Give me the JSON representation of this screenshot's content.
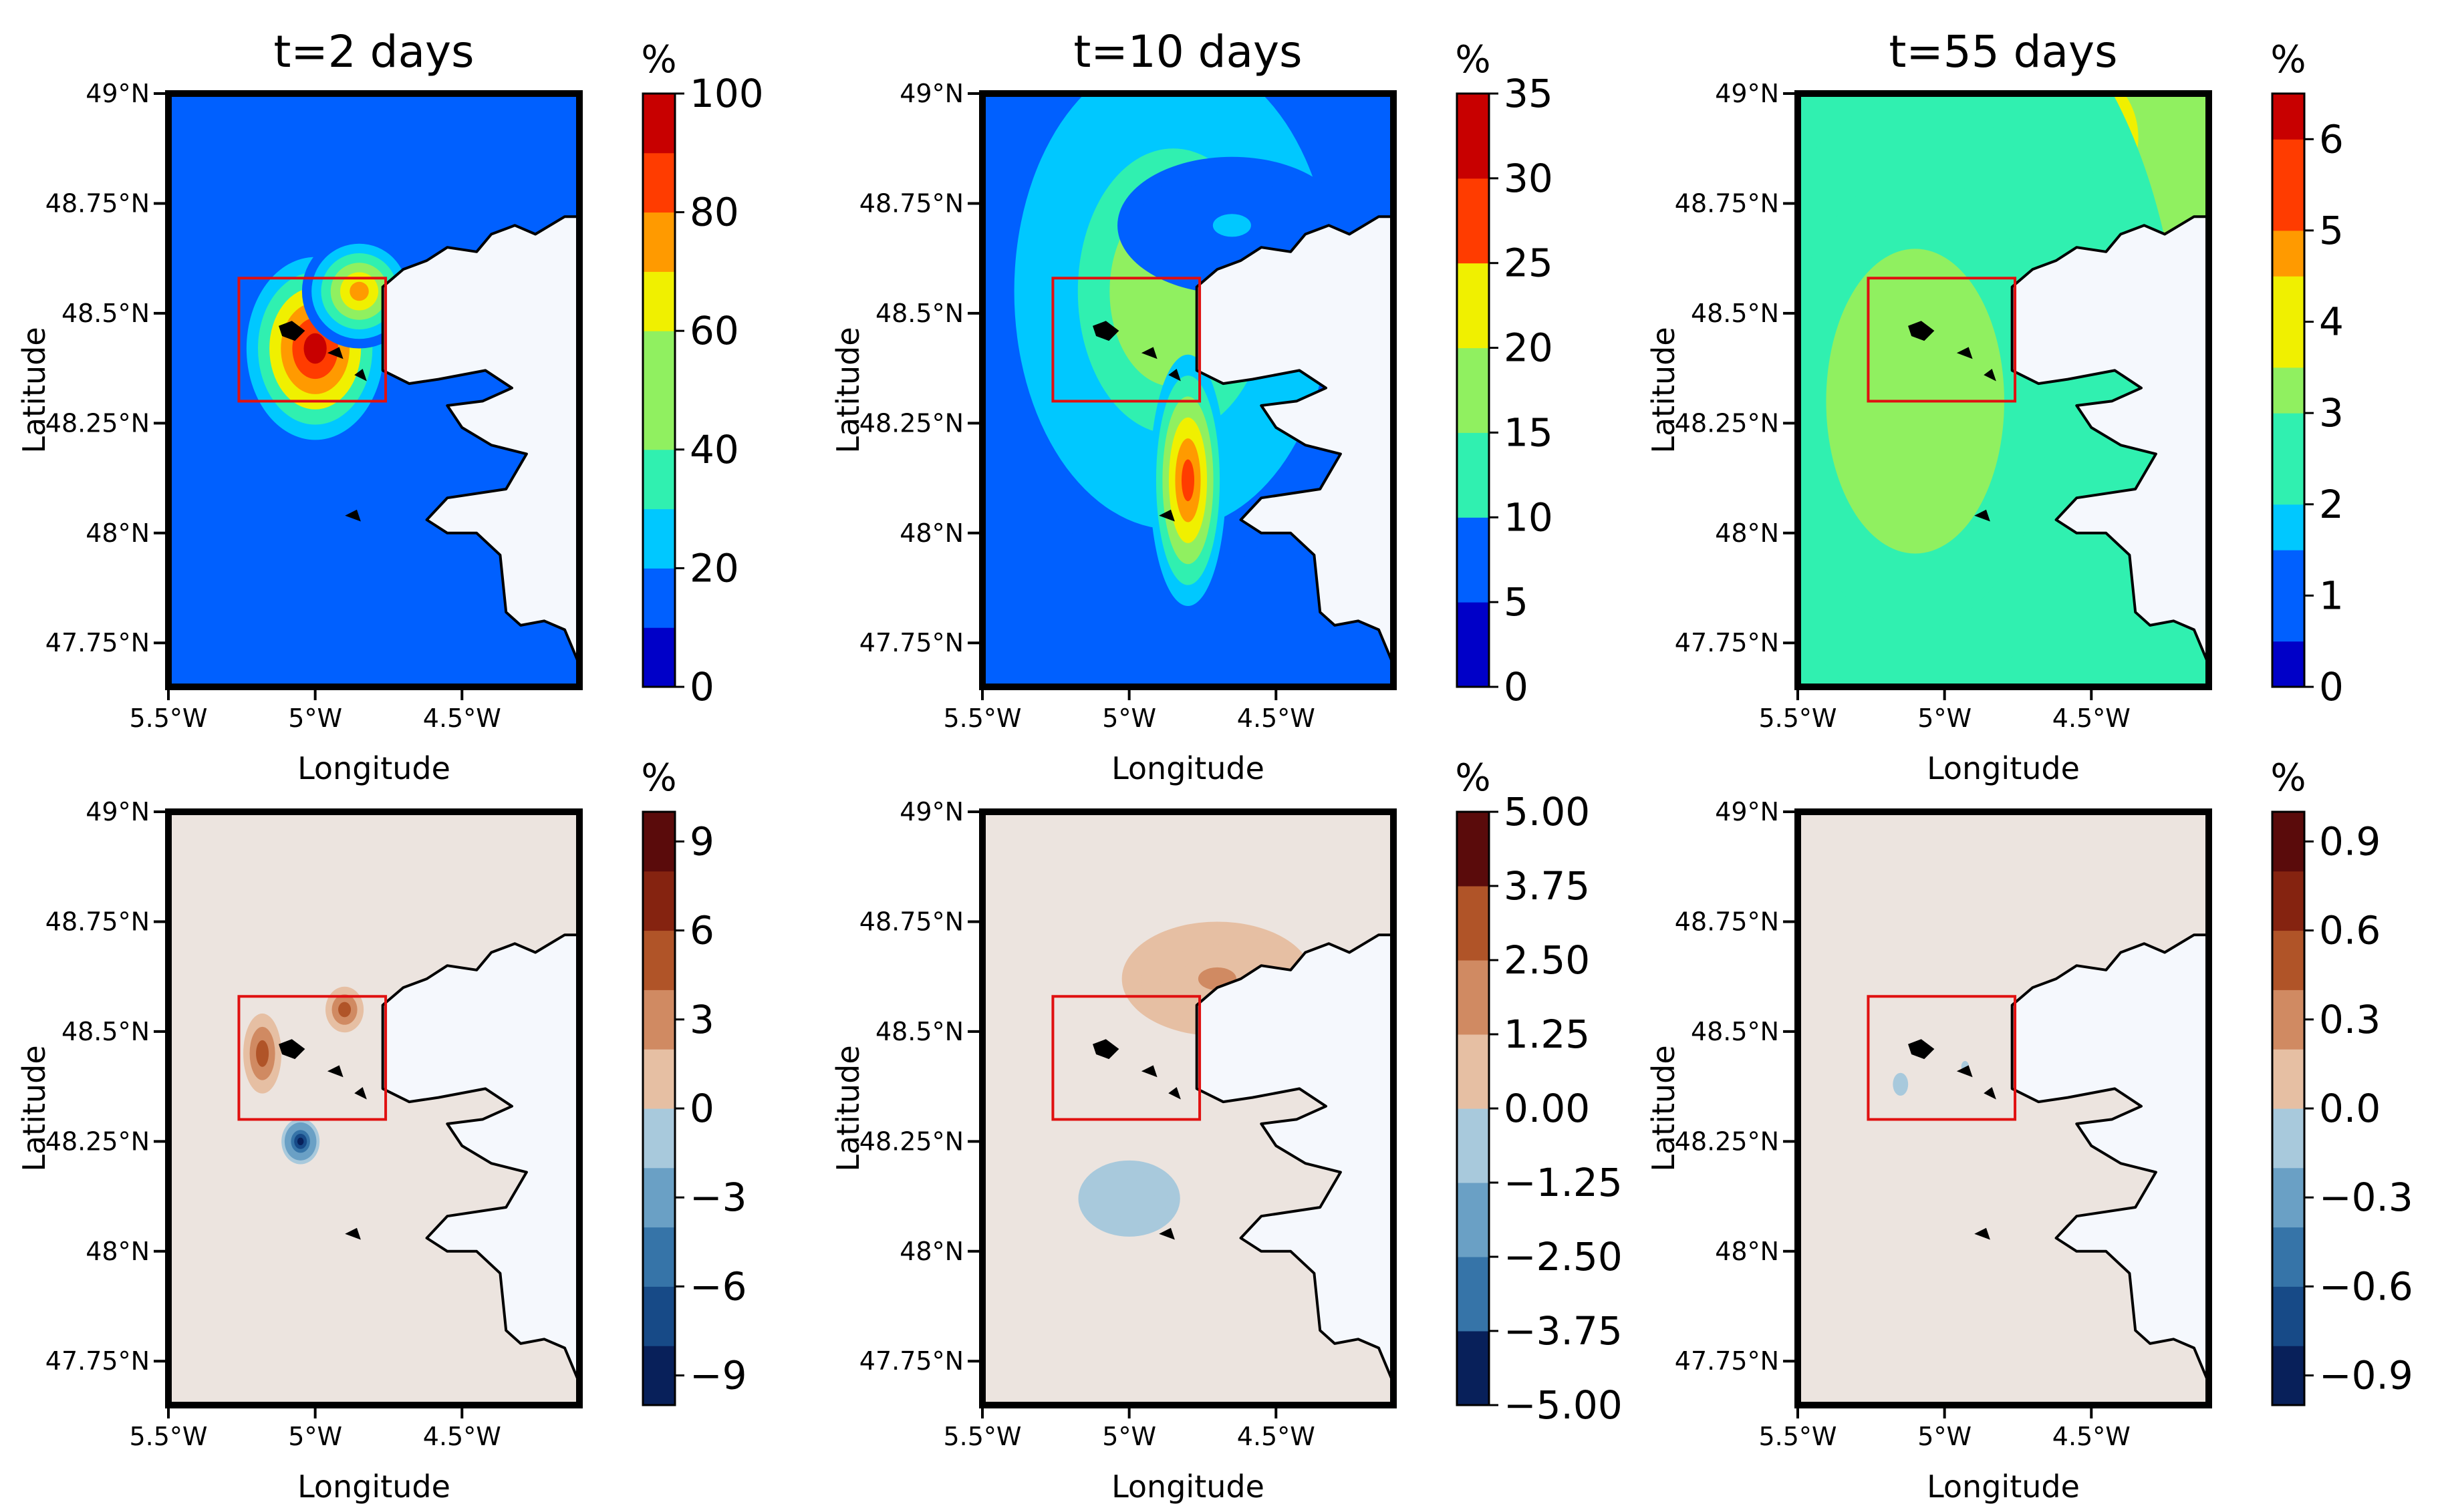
{
  "chart_data": {
    "type": "heatmap",
    "subplots": [
      {
        "id": "p1",
        "title": "t=2 days",
        "row": 0,
        "col": 0,
        "xlabel": "Longitude",
        "ylabel": "Latitude",
        "x_ticks": [
          "5.5°W",
          "5°W",
          "4.5°W"
        ],
        "y_ticks": [
          "49°N",
          "48.75°N",
          "48.5°N",
          "48.25°N",
          "48°N",
          "47.75°N"
        ],
        "xlim": [
          -5.5,
          -4.1
        ],
        "ylim": [
          47.65,
          49.0
        ],
        "box": {
          "lon": [
            -5.26,
            -4.76
          ],
          "lat": [
            48.3,
            48.58
          ]
        },
        "colorbar": {
          "label": "%",
          "ticks": [
            "100",
            "80",
            "60",
            "40",
            "20",
            "0"
          ],
          "range": [
            0,
            100
          ],
          "levels": 10,
          "cmap": "jet"
        },
        "field": [
          {
            "lon": -5.0,
            "lat": 48.42,
            "value": 100,
            "sx": 0.18,
            "sy": 0.16
          },
          {
            "lon": -4.85,
            "lat": 48.55,
            "value": 70,
            "sx": 0.15,
            "sy": 0.1
          }
        ]
      },
      {
        "id": "p2",
        "title": "t=10 days",
        "row": 0,
        "col": 1,
        "xlabel": "Longitude",
        "ylabel": "Latitude",
        "x_ticks": [
          "5.5°W",
          "5°W",
          "4.5°W"
        ],
        "y_ticks": [
          "49°N",
          "48.75°N",
          "48.5°N",
          "48.25°N",
          "48°N",
          "47.75°N"
        ],
        "xlim": [
          -5.5,
          -4.1
        ],
        "ylim": [
          47.65,
          49.0
        ],
        "box": {
          "lon": [
            -5.26,
            -4.76
          ],
          "lat": [
            48.3,
            48.58
          ]
        },
        "colorbar": {
          "label": "%",
          "ticks": [
            "35",
            "30",
            "25",
            "20",
            "15",
            "10",
            "5",
            "0"
          ],
          "range": [
            0,
            35
          ],
          "levels": 7,
          "cmap": "jet"
        },
        "field": [
          {
            "lon": -4.85,
            "lat": 48.55,
            "value": 18,
            "sx": 0.5,
            "sy": 0.5
          },
          {
            "lon": -4.8,
            "lat": 48.12,
            "value": 28,
            "sx": 0.1,
            "sy": 0.22
          },
          {
            "lon": -4.65,
            "lat": 48.7,
            "value": 8,
            "sx": 0.3,
            "sy": 0.12
          }
        ]
      },
      {
        "id": "p3",
        "title": "t=55 days",
        "row": 0,
        "col": 2,
        "xlabel": "Longitude",
        "ylabel": "Latitude",
        "x_ticks": [
          "5.5°W",
          "5°W",
          "4.5°W"
        ],
        "y_ticks": [
          "49°N",
          "48.75°N",
          "48.5°N",
          "48.25°N",
          "48°N",
          "47.75°N"
        ],
        "xlim": [
          -5.5,
          -4.1
        ],
        "ylim": [
          47.65,
          49.0
        ],
        "box": {
          "lon": [
            -5.26,
            -4.76
          ],
          "lat": [
            48.3,
            48.58
          ]
        },
        "colorbar": {
          "label": "%",
          "ticks": [
            "6",
            "5",
            "4",
            "3",
            "2",
            "1",
            "0"
          ],
          "range": [
            0,
            6.5
          ],
          "levels": 13,
          "cmap": "jet"
        },
        "field": [
          {
            "lon": -4.6,
            "lat": 48.9,
            "value": 3.9,
            "sx": 0.6,
            "sy": 0.4
          },
          {
            "lon": -5.1,
            "lat": 48.3,
            "value": 3.0,
            "sx": 0.7,
            "sy": 0.8
          }
        ]
      },
      {
        "id": "p4",
        "title": "",
        "row": 1,
        "col": 0,
        "xlabel": "Longitude",
        "ylabel": "Latitude",
        "x_ticks": [
          "5.5°W",
          "5°W",
          "4.5°W"
        ],
        "y_ticks": [
          "49°N",
          "48.75°N",
          "48.5°N",
          "48.25°N",
          "48°N",
          "47.75°N"
        ],
        "xlim": [
          -5.5,
          -4.1
        ],
        "ylim": [
          47.65,
          49.0
        ],
        "box": {
          "lon": [
            -5.26,
            -4.76
          ],
          "lat": [
            48.3,
            48.58
          ]
        },
        "colorbar": {
          "label": "%",
          "ticks": [
            "9",
            "6",
            "3",
            "0",
            "−3",
            "−6",
            "−9"
          ],
          "range": [
            -10,
            10
          ],
          "levels": 10,
          "cmap": "RdBu"
        },
        "field": [
          {
            "lon": -5.05,
            "lat": 48.25,
            "value": -9,
            "sx": 0.05,
            "sy": 0.04
          },
          {
            "lon": -5.18,
            "lat": 48.45,
            "value": 6,
            "sx": 0.05,
            "sy": 0.07
          },
          {
            "lon": -4.9,
            "lat": 48.55,
            "value": 6,
            "sx": 0.05,
            "sy": 0.04
          }
        ]
      },
      {
        "id": "p5",
        "title": "",
        "row": 1,
        "col": 1,
        "xlabel": "Longitude",
        "ylabel": "Latitude",
        "x_ticks": [
          "5.5°W",
          "5°W",
          "4.5°W"
        ],
        "y_ticks": [
          "49°N",
          "48.75°N",
          "48.5°N",
          "48.25°N",
          "48°N",
          "47.75°N"
        ],
        "xlim": [
          -5.5,
          -4.1
        ],
        "ylim": [
          47.65,
          49.0
        ],
        "box": {
          "lon": [
            -5.26,
            -4.76
          ],
          "lat": [
            48.3,
            48.58
          ]
        },
        "colorbar": {
          "label": "%",
          "ticks": [
            "5.00",
            "3.75",
            "2.50",
            "1.25",
            "0.00",
            "−1.25",
            "−2.50",
            "−3.75",
            "−5.00"
          ],
          "range": [
            -5,
            5
          ],
          "levels": 8,
          "cmap": "RdBu"
        },
        "field": [
          {
            "lon": -4.7,
            "lat": 48.62,
            "value": 1.4,
            "sx": 0.3,
            "sy": 0.12
          },
          {
            "lon": -5.0,
            "lat": 48.12,
            "value": -1.2,
            "sx": 0.2,
            "sy": 0.1
          }
        ]
      },
      {
        "id": "p6",
        "title": "",
        "row": 1,
        "col": 2,
        "xlabel": "Longitude",
        "ylabel": "Latitude",
        "x_ticks": [
          "5.5°W",
          "5°W",
          "4.5°W"
        ],
        "y_ticks": [
          "49°N",
          "48.75°N",
          "48.5°N",
          "48.25°N",
          "48°N",
          "47.75°N"
        ],
        "xlim": [
          -5.5,
          -4.1
        ],
        "ylim": [
          47.65,
          49.0
        ],
        "box": {
          "lon": [
            -5.26,
            -4.76
          ],
          "lat": [
            48.3,
            48.58
          ]
        },
        "colorbar": {
          "label": "%",
          "ticks": [
            "0.9",
            "0.6",
            "0.3",
            "0.0",
            "−0.3",
            "−0.6",
            "−0.9"
          ],
          "range": [
            -1,
            1
          ],
          "levels": 10,
          "cmap": "RdBu"
        },
        "field": [
          {
            "lon": -5.15,
            "lat": 48.38,
            "value": -0.2,
            "sx": 0.03,
            "sy": 0.03
          },
          {
            "lon": -4.93,
            "lat": 48.42,
            "value": -0.15,
            "sx": 0.02,
            "sy": 0.02
          }
        ]
      }
    ]
  },
  "colors": {
    "land": "#f5f8fd",
    "coast": "#000000",
    "box": "#e01010",
    "frame": "#000000",
    "jet": [
      "#0000c8",
      "#0060ff",
      "#00c8ff",
      "#30f0b0",
      "#90f060",
      "#f0f000",
      "#ff9a00",
      "#ff3c00",
      "#c80000"
    ],
    "RdBu": [
      "#08205a",
      "#174a87",
      "#3674a8",
      "#6aa0c5",
      "#a8c9dc",
      "#ece4df",
      "#e6bfa3",
      "#d08a62",
      "#b05428",
      "#852310",
      "#5a0b0b"
    ]
  }
}
